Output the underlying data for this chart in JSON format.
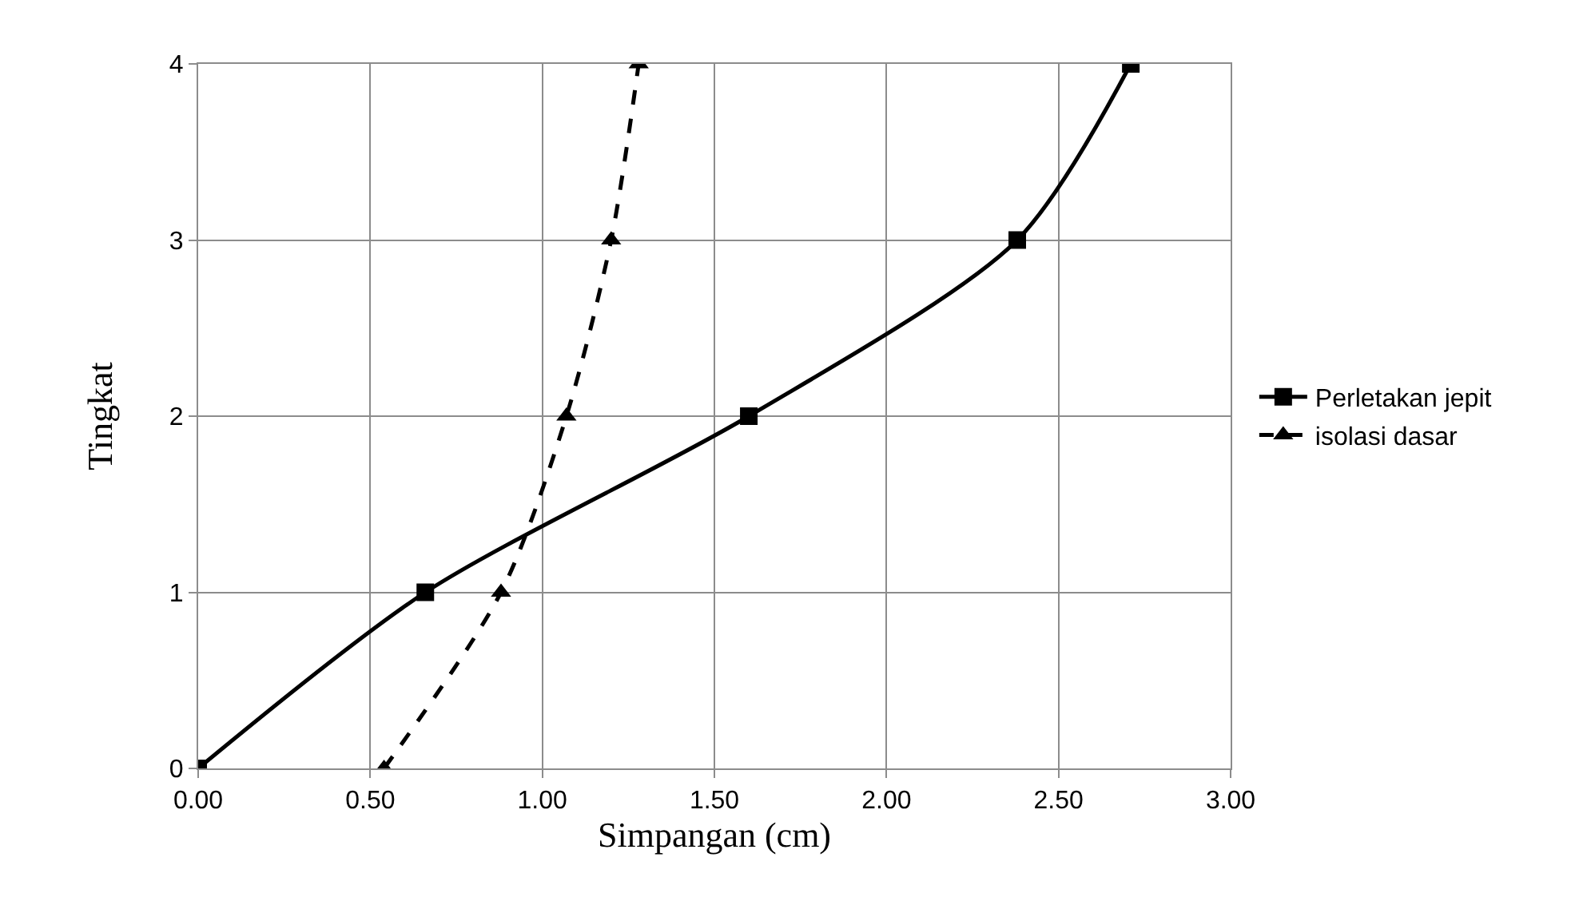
{
  "chart_data": {
    "type": "line",
    "xlabel": "Simpangan (cm)",
    "ylabel": "Tingkat",
    "xlim": [
      0,
      3
    ],
    "xticks": [
      {
        "value": 0,
        "label": "0.00"
      },
      {
        "value": 0.5,
        "label": "0.50"
      },
      {
        "value": 1,
        "label": "1.00"
      },
      {
        "value": 1.5,
        "label": "1.50"
      },
      {
        "value": 2,
        "label": "2.00"
      },
      {
        "value": 2.5,
        "label": "2.50"
      },
      {
        "value": 3,
        "label": "3.00"
      }
    ],
    "ylim": [
      0,
      4
    ],
    "yticks": [
      0,
      1,
      2,
      3,
      4
    ],
    "grid": true,
    "legend": "right",
    "series": [
      {
        "name": "Perletakan jepit",
        "color": "#000000",
        "marker": "square",
        "line_style": "solid",
        "x": [
          0,
          0.66,
          1.6,
          2.38,
          2.71
        ],
        "values": [
          0,
          1,
          2,
          3,
          4
        ]
      },
      {
        "name": "isolasi dasar",
        "color": "#000000",
        "marker": "triangle",
        "line_style": "dashed",
        "x": [
          0.54,
          0.88,
          1.07,
          1.2,
          1.28
        ],
        "values": [
          0,
          1,
          2,
          3,
          4
        ]
      }
    ]
  }
}
